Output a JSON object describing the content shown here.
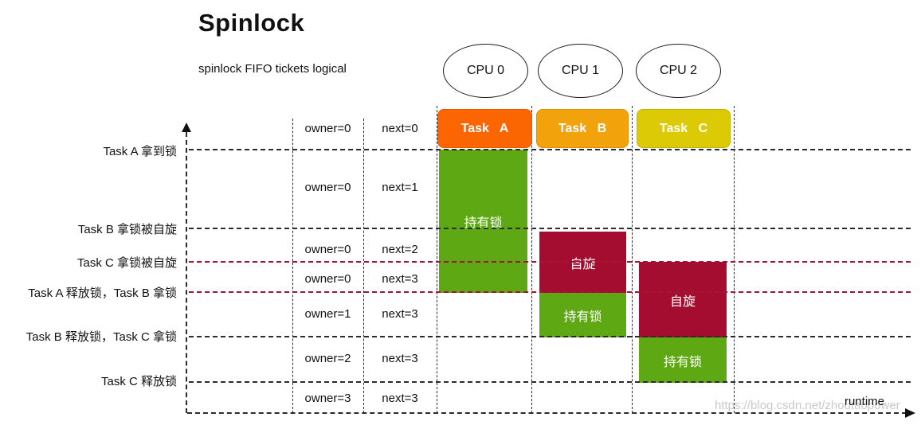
{
  "page": {
    "title": "Spinlock",
    "subtitle": "spinlock FIFO tickets logical"
  },
  "cpus": [
    {
      "label": "CPU 0"
    },
    {
      "label": "CPU 1"
    },
    {
      "label": "CPU 2"
    }
  ],
  "tasks": [
    {
      "label": "Task A",
      "fill": "#fb6602",
      "border": "#ef5400"
    },
    {
      "label": "Task B",
      "fill": "#f2a30c",
      "border": "#da9200"
    },
    {
      "label": "Task C",
      "fill": "#ddca06",
      "border": "#c3b200"
    }
  ],
  "events": [
    {
      "label": "Task A 拿到锁",
      "line_color": "#2b2b2b"
    },
    {
      "label": "Task B 拿锁被自旋",
      "line_color": "#2b2b2b"
    },
    {
      "label": "Task C 拿锁被自旋",
      "line_color": "#a31532"
    },
    {
      "label": "Task A 释放锁，Task B 拿锁",
      "line_color": "#a31532"
    },
    {
      "label": "Task B 释放锁，Task C 拿锁",
      "line_color": "#2b2b2b"
    },
    {
      "label": "Task C 释放锁",
      "line_color": "#2b2b2b"
    }
  ],
  "ticket_table": {
    "rows": [
      {
        "owner": "owner=0",
        "next": "next=0"
      },
      {
        "owner": "owner=0",
        "next": "next=1"
      },
      {
        "owner": "owner=0",
        "next": "next=2"
      },
      {
        "owner": "owner=0",
        "next": "next=3"
      },
      {
        "owner": "owner=1",
        "next": "next=3"
      },
      {
        "owner": "owner=2",
        "next": "next=3"
      },
      {
        "owner": "owner=3",
        "next": "next=3"
      }
    ]
  },
  "bars": [
    {
      "task": "Task A",
      "state": "持有锁",
      "color": "#5da813"
    },
    {
      "task": "Task B",
      "state": "自旋",
      "color": "#a50d30"
    },
    {
      "task": "Task B",
      "state": "持有锁",
      "color": "#5da813"
    },
    {
      "task": "Task C",
      "state": "自旋",
      "color": "#a50d30"
    },
    {
      "task": "Task C",
      "state": "持有锁",
      "color": "#5da813"
    }
  ],
  "axis": {
    "runtime_label": "runtime"
  },
  "watermark": "https://blog.csdn.net/zhoutaopower",
  "colors": {
    "hold_green": "#5da813",
    "spin_red": "#a50d30",
    "grid_black": "#2b2b2b",
    "grid_red": "#a31532"
  }
}
